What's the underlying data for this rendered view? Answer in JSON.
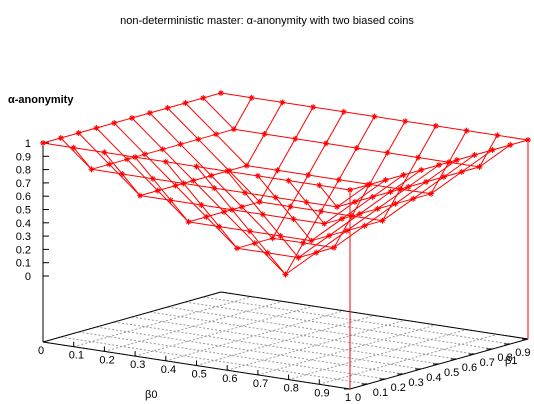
{
  "chart_data": {
    "type": "surface",
    "title": "non-deterministic master: α-anonymity with two biased coins",
    "zlabel": "α-anonymity",
    "xlabel": "β0",
    "ylabel": "β1",
    "xlim": [
      0,
      1
    ],
    "ylim": [
      0,
      1
    ],
    "zlim": [
      0,
      1
    ],
    "x_ticks": [
      "0",
      "0.1",
      "0.2",
      "0.3",
      "0.4",
      "0.5",
      "0.6",
      "0.7",
      "0.8",
      "0.9",
      "1"
    ],
    "y_ticks": [
      "0",
      "0.1",
      "0.2",
      "0.3",
      "0.4",
      "0.5",
      "0.6",
      "0.7",
      "0.8",
      "0.9",
      "1"
    ],
    "z_ticks": [
      "0",
      "0.1",
      "0.2",
      "0.3",
      "0.4",
      "0.5",
      "0.6",
      "0.7",
      "0.8",
      "0.9",
      "1"
    ],
    "grid": true,
    "x": [
      0,
      0.1,
      0.2,
      0.3,
      0.4,
      0.5,
      0.6,
      0.7,
      0.8,
      0.9,
      1
    ],
    "y": [
      0,
      0.1,
      0.2,
      0.3,
      0.4,
      0.5,
      0.6,
      0.7,
      0.8,
      0.9,
      1
    ],
    "z_function": "max(|2*beta0-1|, |2*beta1-1|)",
    "color": "#ff0000"
  }
}
